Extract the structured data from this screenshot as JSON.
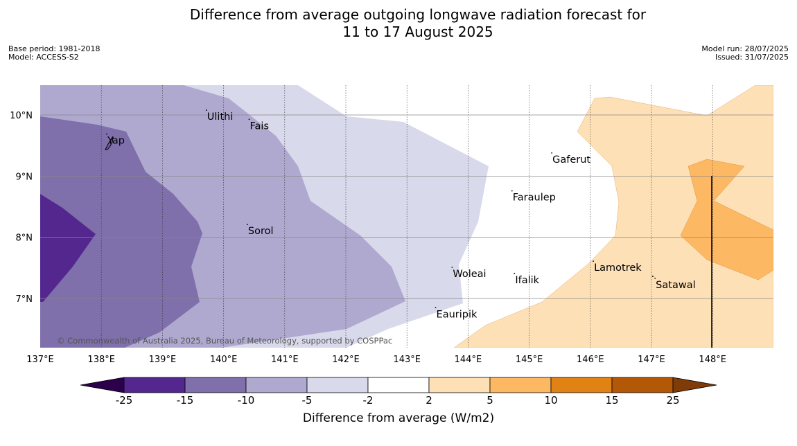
{
  "title_line1": "Difference from average outgoing longwave radiation forecast for",
  "title_line2": "11 to 17 August 2025",
  "base_period": "Base period: 1981-2018",
  "model": "Model: ACCESS-S2",
  "model_run": "Model run: 28/07/2025",
  "issued": "Issued: 31/07/2025",
  "copyright": "© Commonwealth of Australia 2025, Bureau of Meteorology, supported by COSPPac",
  "map": {
    "lon_ticks": [
      "137°E",
      "138°E",
      "139°E",
      "140°E",
      "141°E",
      "142°E",
      "143°E",
      "144°E",
      "145°E",
      "146°E",
      "147°E",
      "148°E"
    ],
    "lat_ticks": [
      "10°N",
      "9°N",
      "8°N",
      "7°N"
    ],
    "places": [
      {
        "name": "Yap",
        "lon": 138.1,
        "lat": 9.53
      },
      {
        "name": "Ulithi",
        "lon": 139.73,
        "lat": 9.92
      },
      {
        "name": "Fais",
        "lon": 140.43,
        "lat": 9.77
      },
      {
        "name": "Sorol",
        "lon": 140.4,
        "lat": 8.05
      },
      {
        "name": "Gaferut",
        "lon": 145.38,
        "lat": 9.22
      },
      {
        "name": "Faraulep",
        "lon": 144.73,
        "lat": 8.6
      },
      {
        "name": "Lamotrek",
        "lon": 146.06,
        "lat": 7.45
      },
      {
        "name": "Satawal",
        "lon": 147.07,
        "lat": 7.17
      },
      {
        "name": "Woleai",
        "lon": 143.75,
        "lat": 7.35
      },
      {
        "name": "Ifalik",
        "lon": 144.77,
        "lat": 7.25
      },
      {
        "name": "Eauripik",
        "lon": 143.48,
        "lat": 6.69
      }
    ]
  },
  "colorbar": {
    "ticks": [
      "-25",
      "-15",
      "-10",
      "-5",
      "-2",
      "2",
      "5",
      "10",
      "15",
      "25"
    ],
    "colors": [
      "#54278f",
      "#7f6faa",
      "#afa9d0",
      "#d8d9eb",
      "#ffffff",
      "#fee0b6",
      "#fdb863",
      "#e08214",
      "#b35806"
    ],
    "under_color": "#2d004b",
    "over_color": "#7f3b08",
    "label": "Difference from average (W/m2)"
  }
}
